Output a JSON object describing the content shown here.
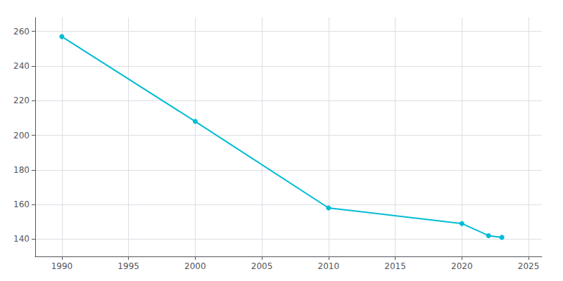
{
  "chart_data": {
    "type": "line",
    "x": [
      1990,
      2000,
      2010,
      2020,
      2022,
      2023
    ],
    "values": [
      257,
      208,
      158,
      149,
      142,
      141
    ],
    "color": "#00BCD4",
    "marker": "circle",
    "xlim": [
      1988,
      2026
    ],
    "ylim": [
      130,
      268
    ],
    "xticks": [
      1990,
      1995,
      2000,
      2005,
      2010,
      2015,
      2020,
      2025
    ],
    "yticks": [
      140,
      160,
      180,
      200,
      220,
      240,
      260
    ],
    "grid": true
  }
}
